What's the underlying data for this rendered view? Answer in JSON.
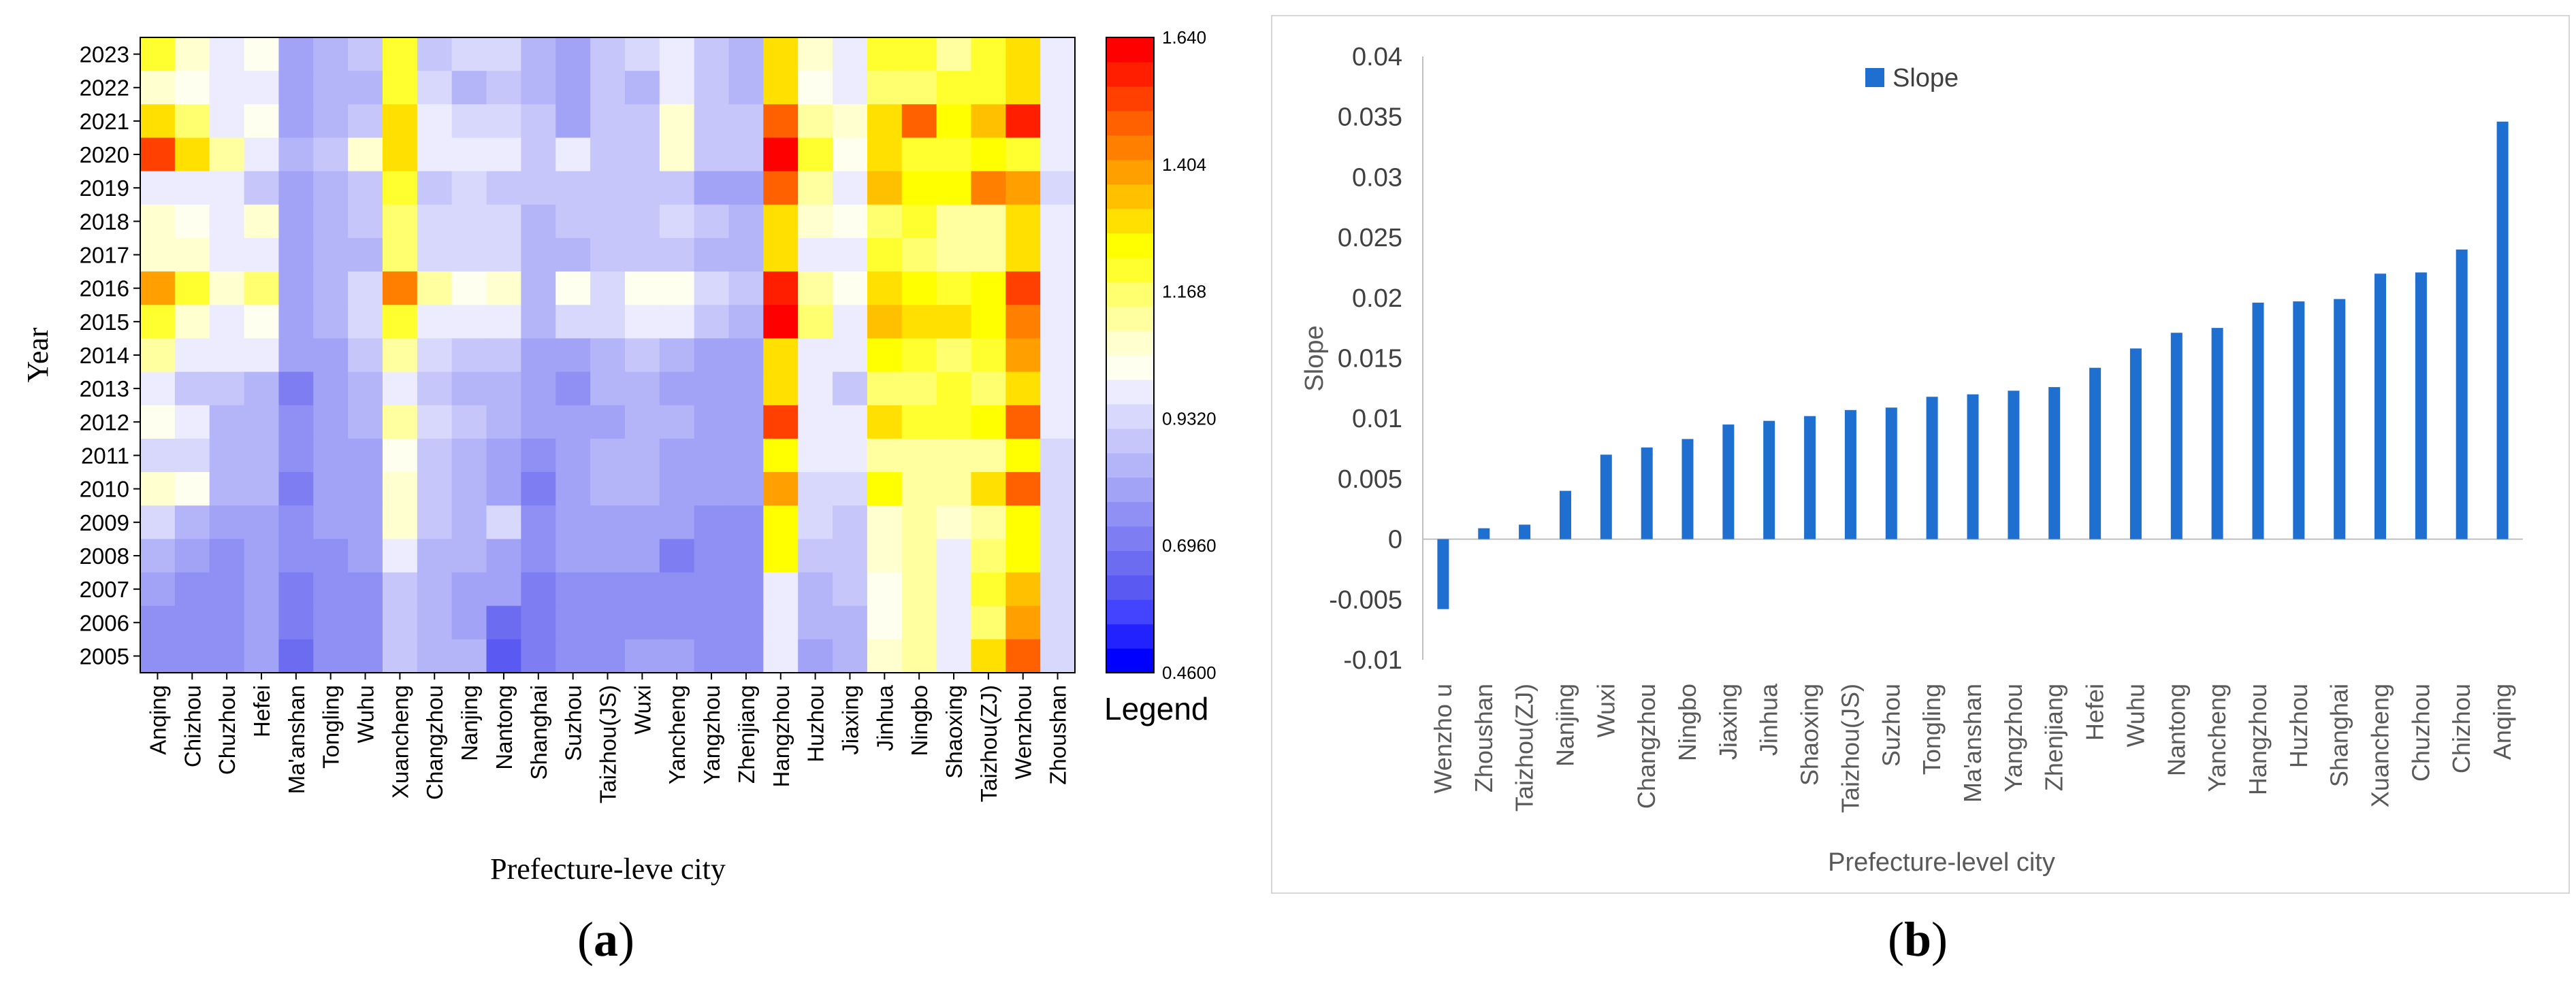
{
  "panel_labels": {
    "a_open": "(",
    "a_letter": "a",
    "a_close": ")",
    "b_open": "(",
    "b_letter": "b",
    "b_close": ")"
  },
  "chart_data": [
    {
      "type": "heatmap",
      "title": "",
      "xlabel": "Prefecture-leve city",
      "ylabel": "Year",
      "categories": [
        "Anqing",
        "Chizhou",
        "Chuzhou",
        "Hefei",
        "Ma'anshan",
        "Tongling",
        "Wuhu",
        "Xuancheng",
        "Changzhou",
        "Nanjing",
        "Nantong",
        "Shanghai",
        "Suzhou",
        "Taizhou(JS)",
        "Wuxi",
        "Yancheng",
        "Yangzhou",
        "Zhenjiang",
        "Hangzhou",
        "Huzhou",
        "Jiaxing",
        "Jinhua",
        "Ningbo",
        "Shaoxing",
        "Taizhou(ZJ)",
        "Wenzhou",
        "Zhoushan"
      ],
      "years": [
        "2023",
        "2022",
        "2021",
        "2020",
        "2019",
        "2018",
        "2017",
        "2016",
        "2015",
        "2014",
        "2013",
        "2012",
        "2011",
        "2010",
        "2009",
        "2008",
        "2007",
        "2006",
        "2005"
      ],
      "values": [
        [
          1.22,
          1.08,
          1.0,
          1.02,
          0.82,
          0.86,
          0.9,
          1.22,
          0.9,
          0.92,
          0.94,
          0.86,
          0.82,
          0.9,
          0.92,
          0.98,
          0.88,
          0.84,
          1.28,
          1.06,
          1.0,
          1.2,
          1.2,
          1.12,
          1.22,
          1.32,
          1.0
        ],
        [
          1.06,
          1.04,
          1.0,
          0.96,
          0.8,
          0.84,
          0.86,
          1.2,
          0.92,
          0.86,
          0.9,
          0.86,
          0.8,
          0.88,
          0.86,
          0.98,
          0.9,
          0.86,
          1.3,
          1.04,
          1.0,
          1.18,
          1.18,
          1.22,
          1.2,
          1.28,
          1.0
        ],
        [
          1.28,
          1.16,
          1.0,
          1.04,
          0.82,
          0.86,
          0.9,
          1.3,
          0.96,
          0.94,
          0.94,
          0.88,
          0.8,
          0.88,
          0.9,
          1.08,
          0.88,
          0.88,
          1.48,
          1.14,
          1.06,
          1.32,
          1.48,
          1.26,
          1.36,
          1.58,
          1.0
        ],
        [
          1.52,
          1.3,
          1.1,
          1.0,
          0.84,
          0.88,
          1.06,
          1.28,
          0.96,
          0.96,
          0.96,
          0.9,
          1.0,
          0.9,
          0.9,
          1.06,
          0.88,
          0.88,
          1.6,
          1.2,
          1.04,
          1.3,
          1.22,
          1.2,
          1.24,
          1.22,
          0.96
        ],
        [
          1.0,
          0.98,
          0.96,
          0.9,
          0.78,
          0.86,
          0.88,
          1.2,
          0.9,
          0.92,
          0.9,
          0.88,
          0.88,
          0.88,
          0.88,
          0.88,
          0.82,
          0.82,
          1.5,
          1.12,
          1.0,
          1.34,
          1.26,
          1.26,
          1.44,
          1.4,
          0.94
        ],
        [
          1.06,
          1.04,
          1.0,
          1.06,
          0.8,
          0.86,
          0.88,
          1.18,
          0.94,
          0.92,
          0.94,
          0.86,
          0.88,
          0.88,
          0.88,
          0.92,
          0.88,
          0.86,
          1.3,
          1.06,
          1.02,
          1.18,
          1.2,
          1.1,
          1.14,
          1.3,
          0.96
        ],
        [
          1.06,
          1.06,
          0.98,
          0.96,
          0.78,
          0.86,
          0.86,
          1.18,
          0.94,
          0.92,
          0.92,
          0.86,
          0.86,
          0.88,
          0.9,
          0.9,
          0.86,
          0.86,
          1.3,
          1.0,
          1.0,
          1.2,
          1.18,
          1.1,
          1.12,
          1.32,
          0.96
        ],
        [
          1.4,
          1.2,
          1.06,
          1.16,
          0.8,
          0.84,
          0.94,
          1.44,
          1.1,
          1.02,
          1.08,
          0.86,
          1.02,
          0.94,
          1.04,
          1.04,
          0.92,
          0.88,
          1.58,
          1.12,
          1.04,
          1.28,
          1.24,
          1.2,
          1.24,
          1.52,
          0.96
        ],
        [
          1.22,
          1.06,
          1.0,
          1.02,
          0.8,
          0.84,
          0.92,
          1.2,
          0.98,
          0.96,
          0.98,
          0.84,
          0.92,
          0.92,
          0.98,
          1.0,
          0.9,
          0.86,
          1.64,
          1.16,
          1.0,
          1.34,
          1.28,
          1.28,
          1.26,
          1.44,
          0.96
        ],
        [
          1.14,
          1.0,
          1.0,
          0.96,
          0.78,
          0.82,
          0.88,
          1.1,
          0.92,
          0.88,
          0.88,
          0.82,
          0.8,
          0.86,
          0.88,
          0.84,
          0.82,
          0.82,
          1.3,
          1.0,
          1.0,
          1.26,
          1.2,
          1.18,
          1.22,
          1.4,
          0.96
        ],
        [
          1.0,
          0.9,
          0.9,
          0.86,
          0.72,
          0.8,
          0.84,
          1.0,
          0.88,
          0.86,
          0.84,
          0.8,
          0.76,
          0.84,
          0.84,
          0.8,
          0.8,
          0.8,
          1.28,
          0.96,
          0.9,
          1.16,
          1.18,
          1.2,
          1.16,
          1.32,
          0.96
        ],
        [
          1.04,
          0.98,
          0.86,
          0.86,
          0.76,
          0.8,
          0.86,
          1.1,
          0.92,
          0.88,
          0.84,
          0.8,
          0.82,
          0.82,
          0.86,
          0.84,
          0.8,
          0.8,
          1.54,
          1.0,
          0.96,
          1.3,
          1.2,
          1.22,
          1.24,
          1.5,
          0.96
        ],
        [
          0.94,
          0.92,
          0.86,
          0.86,
          0.76,
          0.8,
          0.82,
          1.04,
          0.9,
          0.86,
          0.82,
          0.74,
          0.82,
          0.84,
          0.86,
          0.82,
          0.8,
          0.8,
          1.26,
          0.96,
          0.96,
          1.12,
          1.12,
          1.12,
          1.12,
          1.24,
          0.94
        ],
        [
          1.06,
          1.02,
          0.84,
          0.84,
          0.72,
          0.8,
          0.82,
          1.06,
          0.88,
          0.86,
          0.82,
          0.72,
          0.8,
          0.84,
          0.84,
          0.82,
          0.78,
          0.78,
          1.4,
          0.92,
          0.92,
          1.24,
          1.12,
          1.1,
          1.28,
          1.5,
          0.94
        ],
        [
          0.92,
          0.86,
          0.78,
          0.8,
          0.74,
          0.78,
          0.78,
          1.06,
          0.88,
          0.86,
          0.94,
          0.74,
          0.82,
          0.8,
          0.8,
          0.78,
          0.76,
          0.76,
          1.26,
          0.92,
          0.9,
          1.08,
          1.14,
          1.06,
          1.14,
          1.24,
          0.92
        ],
        [
          0.84,
          0.8,
          0.76,
          0.8,
          0.74,
          0.76,
          0.78,
          0.98,
          0.86,
          0.84,
          0.82,
          0.74,
          0.78,
          0.78,
          0.78,
          0.72,
          0.76,
          0.76,
          1.26,
          0.9,
          0.88,
          1.06,
          1.1,
          1.0,
          1.16,
          1.24,
          0.92
        ],
        [
          0.8,
          0.76,
          0.74,
          0.8,
          0.72,
          0.74,
          0.74,
          0.88,
          0.84,
          0.82,
          0.78,
          0.72,
          0.76,
          0.76,
          0.76,
          0.76,
          0.74,
          0.74,
          1.0,
          0.84,
          0.88,
          1.04,
          1.12,
          1.0,
          1.2,
          1.36,
          0.92
        ],
        [
          0.76,
          0.74,
          0.74,
          0.8,
          0.7,
          0.74,
          0.74,
          0.88,
          0.84,
          0.8,
          0.68,
          0.72,
          0.76,
          0.76,
          0.76,
          0.76,
          0.74,
          0.74,
          1.0,
          0.84,
          0.86,
          1.02,
          1.12,
          0.98,
          1.18,
          1.4,
          0.92
        ],
        [
          0.76,
          0.74,
          0.76,
          0.8,
          0.66,
          0.74,
          0.74,
          0.88,
          0.84,
          0.84,
          0.64,
          0.72,
          0.76,
          0.76,
          0.78,
          0.78,
          0.74,
          0.74,
          0.96,
          0.82,
          0.86,
          1.06,
          1.14,
          1.0,
          1.28,
          1.5,
          0.92
        ]
      ],
      "legend": {
        "title": "Legend",
        "min": 0.46,
        "max": 1.64,
        "ticks": [
          "1.640",
          "1.404",
          "1.168",
          "0.9320",
          "0.6960",
          "0.4600"
        ],
        "colors_bottom_to_top": [
          "#0000ff",
          "#2222ff",
          "#4444ff",
          "#5a5af2",
          "#6c6cf0",
          "#7e7ef2",
          "#9090f4",
          "#a2a2f6",
          "#b4b4f8",
          "#c6c6fa",
          "#d8d8fc",
          "#ececfe",
          "#fffff0",
          "#ffffd0",
          "#ffffa0",
          "#ffff70",
          "#ffff30",
          "#ffff00",
          "#ffe000",
          "#ffc000",
          "#ffa000",
          "#ff8000",
          "#ff6000",
          "#ff4000",
          "#ff1f00",
          "#ff0000"
        ]
      }
    },
    {
      "type": "bar",
      "title": "",
      "xlabel": "Prefecture-level city",
      "ylabel": "Slope",
      "legend": {
        "label": "Slope",
        "position": "top-left"
      },
      "series": [
        {
          "name": "Slope",
          "color": "#1f6fd0"
        }
      ],
      "categories": [
        "Wenzhou",
        "Zhoushan",
        "Taizhou(ZJ)",
        "Nanjing",
        "Wuxi",
        "Changzhou",
        "Ningbo",
        "Jiaxing",
        "Jinhua",
        "Shaoxing",
        "Taizhou(JS)",
        "Suzhou",
        "Tongling",
        "Ma'anshan",
        "Yangzhou",
        "Zhenjiang",
        "Hefei",
        "Wuhu",
        "Nantong",
        "Yancheng",
        "Hangzhou",
        "Huzhou",
        "Shanghai",
        "Xuancheng",
        "Chuzhou",
        "Chizhou",
        "Anqing"
      ],
      "category_display": [
        "Wenzho u",
        "Zhoushan",
        "Taizhou(ZJ)",
        "Nanjing",
        "Wuxi",
        "Changzhou",
        "Ningbo",
        "Jiaxing",
        "Jinhua",
        "Shaoxing",
        "Taizhou(JS)",
        "Suzhou",
        "Tongling",
        "Ma'anshan",
        "Yangzhou",
        "Zhenjiang",
        "Hefei",
        "Wuhu",
        "Nantong",
        "Yancheng",
        "Hangzhou",
        "Huzhou",
        "Shanghai",
        "Xuancheng",
        "Chuzhou",
        "Chizhou",
        "Anqing"
      ],
      "values": [
        -0.0058,
        0.0009,
        0.0012,
        0.004,
        0.007,
        0.0076,
        0.0083,
        0.0095,
        0.0098,
        0.0102,
        0.0107,
        0.0109,
        0.0118,
        0.012,
        0.0123,
        0.0126,
        0.0142,
        0.0158,
        0.0171,
        0.0175,
        0.0196,
        0.0197,
        0.0199,
        0.022,
        0.0221,
        0.024,
        0.0346
      ],
      "ylim": [
        -0.01,
        0.04
      ],
      "yticks": [
        "0.04",
        "0.035",
        "0.03",
        "0.025",
        "0.02",
        "0.015",
        "0.01",
        "0.005",
        "0",
        "-0.005",
        "-0.01"
      ],
      "grid": false
    }
  ]
}
